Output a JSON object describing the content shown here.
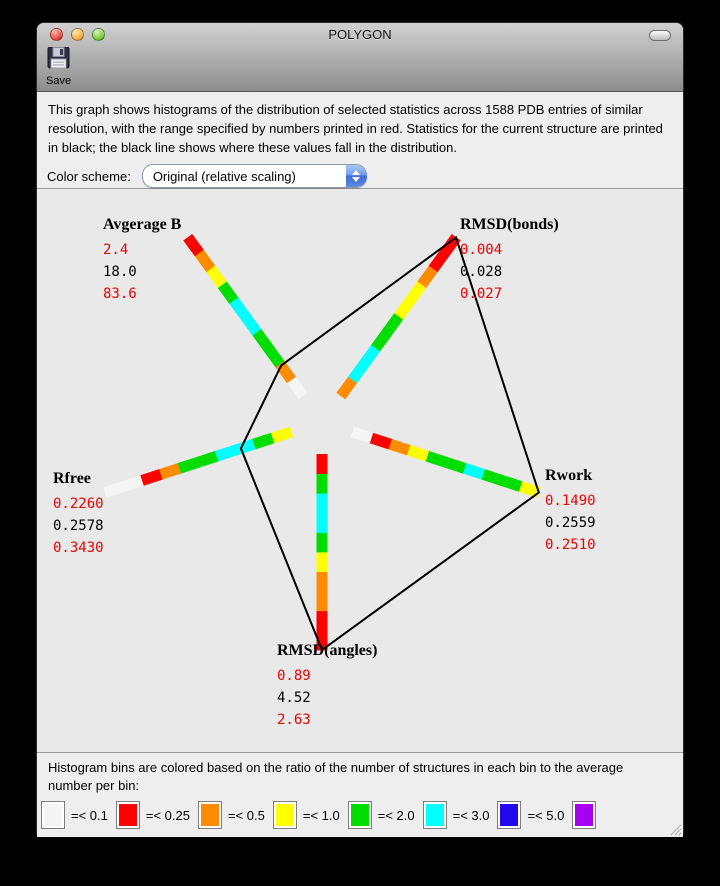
{
  "window": {
    "title": "POLYGON"
  },
  "toolbar": {
    "save_label": "Save"
  },
  "header": {
    "description": "This graph shows histograms of the distribution of selected statistics across 1588 PDB entries of similar resolution, with the range specified by numbers printed in red.  Statistics for the current structure are printed in black; the black line shows where these values fall in the distribution.",
    "color_scheme_label": "Color scheme:",
    "color_scheme_value": "Original (relative scaling)"
  },
  "chart_data": {
    "type": "radar-histogram",
    "entries_compared": 1588,
    "axes": [
      {
        "name": "Avgerage B",
        "min": 2.4,
        "value": 18.0,
        "max": 83.6,
        "min_label": "2.4",
        "value_label": "18.0",
        "max_label": "83.6",
        "angle_deg": 126,
        "bins_outer_to_inner": [
          "red",
          "orange",
          "yellow",
          "green",
          "cyan",
          "cyan",
          "green",
          "green",
          "orange",
          "white"
        ]
      },
      {
        "name": "RMSD(bonds)",
        "min": 0.004,
        "value": 0.028,
        "max": 0.027,
        "min_label": "0.004",
        "value_label": "0.028",
        "max_label": "0.027",
        "angle_deg": 54,
        "bins_outer_to_inner": [
          "red",
          "red",
          "orange",
          "yellow",
          "yellow",
          "green",
          "green",
          "cyan",
          "cyan",
          "orange"
        ]
      },
      {
        "name": "Rwork",
        "min": 0.149,
        "value": 0.2559,
        "max": 0.251,
        "min_label": "0.1490",
        "value_label": "0.2559",
        "max_label": "0.2510",
        "angle_deg": -18,
        "bins_outer_to_inner": [
          "yellow",
          "green",
          "green",
          "cyan",
          "green",
          "green",
          "yellow",
          "orange",
          "red",
          "white"
        ]
      },
      {
        "name": "RMSD(angles)",
        "min": 0.89,
        "value": 4.52,
        "max": 2.63,
        "min_label": "0.89",
        "value_label": "4.52",
        "max_label": "2.63",
        "angle_deg": 270,
        "bins_outer_to_inner": [
          "red",
          "red",
          "orange",
          "orange",
          "yellow",
          "green",
          "cyan",
          "cyan",
          "green",
          "red"
        ]
      },
      {
        "name": "Rfree",
        "min": 0.226,
        "value": 0.2578,
        "max": 0.343,
        "min_label": "0.2260",
        "value_label": "0.2578",
        "max_label": "0.3430",
        "angle_deg": 198,
        "bins_outer_to_inner": [
          "white",
          "white",
          "red",
          "orange",
          "green",
          "green",
          "cyan",
          "cyan",
          "green",
          "yellow"
        ]
      }
    ],
    "polygon_color": "#000000"
  },
  "legend": {
    "caption": "Histogram bins are colored based on the ratio of the number of structures in each bin to the average number per bin:",
    "bins": [
      {
        "color_name": "white",
        "label": "=< 0.1"
      },
      {
        "color_name": "red",
        "label": "=< 0.25"
      },
      {
        "color_name": "orange",
        "label": "=< 0.5"
      },
      {
        "color_name": "yellow",
        "label": "=< 1.0"
      },
      {
        "color_name": "green",
        "label": "=< 2.0"
      },
      {
        "color_name": "cyan",
        "label": "=< 3.0"
      },
      {
        "color_name": "blue",
        "label": "=< 5.0"
      },
      {
        "color_name": "purple",
        "label": ""
      }
    ]
  },
  "colors": {
    "white": "#f5f5f5",
    "red": "#ff0000",
    "orange": "#ff8c00",
    "yellow": "#ffff00",
    "green": "#00dd00",
    "cyan": "#00ffff",
    "blue": "#2208ee",
    "purple": "#a800f0",
    "value_red": "#ee0000",
    "value_black": "#000000"
  }
}
